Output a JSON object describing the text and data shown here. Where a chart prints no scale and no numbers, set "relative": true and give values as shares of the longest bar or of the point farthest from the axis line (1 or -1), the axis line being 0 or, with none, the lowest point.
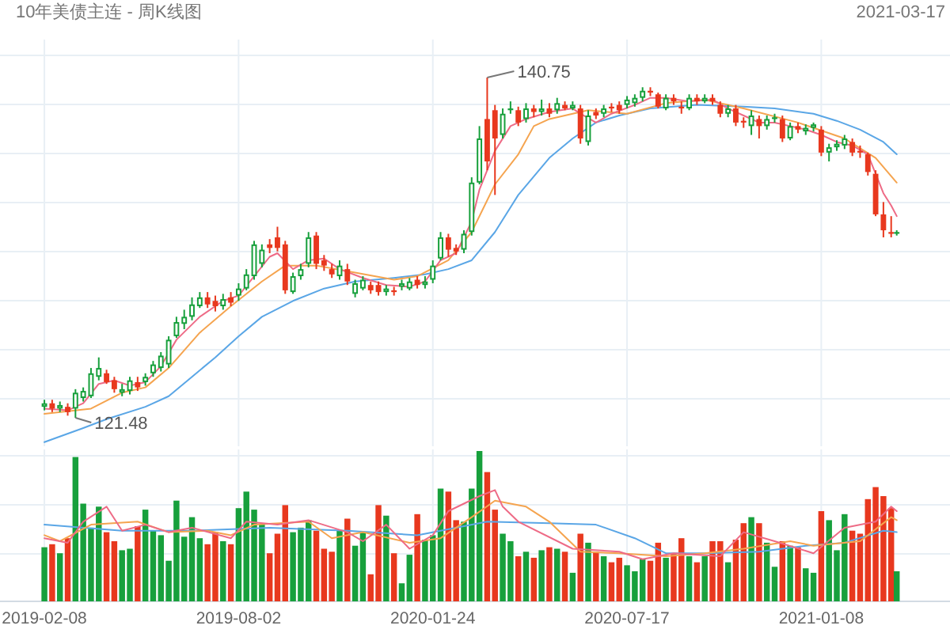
{
  "chart_data": [
    {
      "type": "candlestick",
      "title": "10年美债主连 - 周K线图",
      "x": [
        "2019-02-08",
        "2019-02-15",
        "2019-02-22",
        "2019-03-01",
        "2019-03-08",
        "2019-03-15",
        "2019-03-22",
        "2019-03-29",
        "2019-04-05",
        "2019-04-12",
        "2019-04-19",
        "2019-04-26",
        "2019-05-03",
        "2019-05-10",
        "2019-05-17",
        "2019-05-24",
        "2019-05-31",
        "2019-06-07",
        "2019-06-14",
        "2019-06-21",
        "2019-06-28",
        "2019-07-05",
        "2019-07-12",
        "2019-07-19",
        "2019-07-26",
        "2019-08-02",
        "2019-08-09",
        "2019-08-16",
        "2019-08-23",
        "2019-08-30",
        "2019-09-06",
        "2019-09-13",
        "2019-09-20",
        "2019-09-27",
        "2019-10-04",
        "2019-10-11",
        "2019-10-18",
        "2019-10-25",
        "2019-11-01",
        "2019-11-08",
        "2019-11-15",
        "2019-11-22",
        "2019-11-29",
        "2019-12-06",
        "2019-12-13",
        "2019-12-20",
        "2019-12-27",
        "2020-01-03",
        "2020-01-10",
        "2020-01-17",
        "2020-01-24",
        "2020-01-31",
        "2020-02-07",
        "2020-02-14",
        "2020-02-21",
        "2020-02-28",
        "2020-03-06",
        "2020-03-13",
        "2020-03-20",
        "2020-03-27",
        "2020-04-03",
        "2020-04-10",
        "2020-04-17",
        "2020-04-24",
        "2020-05-01",
        "2020-05-08",
        "2020-05-15",
        "2020-05-22",
        "2020-05-29",
        "2020-06-05",
        "2020-06-12",
        "2020-06-19",
        "2020-06-26",
        "2020-07-03",
        "2020-07-10",
        "2020-07-17",
        "2020-07-24",
        "2020-07-31",
        "2020-08-07",
        "2020-08-14",
        "2020-08-21",
        "2020-08-28",
        "2020-09-04",
        "2020-09-11",
        "2020-09-18",
        "2020-09-25",
        "2020-10-02",
        "2020-10-09",
        "2020-10-16",
        "2020-10-23",
        "2020-10-30",
        "2020-11-06",
        "2020-11-13",
        "2020-11-20",
        "2020-11-27",
        "2020-12-04",
        "2020-12-11",
        "2020-12-18",
        "2020-12-25",
        "2021-01-01",
        "2021-01-08",
        "2021-01-15",
        "2021-01-22",
        "2021-01-29",
        "2021-02-05",
        "2021-02-12",
        "2021-02-19",
        "2021-02-26",
        "2021-03-05",
        "2021-03-12",
        "2021-03-17"
      ],
      "ohlc": [
        [
          122.1,
          122.5,
          121.9,
          122.3
        ],
        [
          122.3,
          122.5,
          121.8,
          122.0
        ],
        [
          122.0,
          122.4,
          121.8,
          122.2
        ],
        [
          122.1,
          122.3,
          121.6,
          121.8
        ],
        [
          122.0,
          123.1,
          121.48,
          122.9
        ],
        [
          122.6,
          123.2,
          122.4,
          123.0
        ],
        [
          122.7,
          124.3,
          122.6,
          124.0
        ],
        [
          123.8,
          124.9,
          123.6,
          124.3
        ],
        [
          124.0,
          124.2,
          123.4,
          123.5
        ],
        [
          123.6,
          123.8,
          122.9,
          123.1
        ],
        [
          122.9,
          123.4,
          122.7,
          123.1
        ],
        [
          123.0,
          123.8,
          122.8,
          123.6
        ],
        [
          123.5,
          123.8,
          123.0,
          123.2
        ],
        [
          123.5,
          124.0,
          123.3,
          123.8
        ],
        [
          124.0,
          124.7,
          123.8,
          124.5
        ],
        [
          124.3,
          125.2,
          124.1,
          125.0
        ],
        [
          124.5,
          126.1,
          124.3,
          125.9
        ],
        [
          126.1,
          127.2,
          126.0,
          126.9
        ],
        [
          126.8,
          127.6,
          126.5,
          127.2
        ],
        [
          127.2,
          128.3,
          127.0,
          127.9
        ],
        [
          127.8,
          128.6,
          127.7,
          128.3
        ],
        [
          128.3,
          128.6,
          127.7,
          127.9
        ],
        [
          128.1,
          128.4,
          127.5,
          127.8
        ],
        [
          127.8,
          128.5,
          127.6,
          128.2
        ],
        [
          128.3,
          128.6,
          127.8,
          128.0
        ],
        [
          128.4,
          129.1,
          128.1,
          128.8
        ],
        [
          128.8,
          129.9,
          128.7,
          129.6
        ],
        [
          129.5,
          131.5,
          129.3,
          131.3
        ],
        [
          130.2,
          131.3,
          130.0,
          131.0
        ],
        [
          131.3,
          131.6,
          130.8,
          131.1
        ],
        [
          131.7,
          132.3,
          130.9,
          131.1
        ],
        [
          131.3,
          131.5,
          128.5,
          128.7
        ],
        [
          128.6,
          129.7,
          128.5,
          129.5
        ],
        [
          129.5,
          130.2,
          129.3,
          129.9
        ],
        [
          130.2,
          132.0,
          130.0,
          131.7
        ],
        [
          131.8,
          132.0,
          129.9,
          130.2
        ],
        [
          130.4,
          130.7,
          129.8,
          130.1
        ],
        [
          129.9,
          130.2,
          129.4,
          129.6
        ],
        [
          129.5,
          130.4,
          129.3,
          130.1
        ],
        [
          129.9,
          130.2,
          129.0,
          129.2
        ],
        [
          128.5,
          129.3,
          128.3,
          129.1
        ],
        [
          128.8,
          129.5,
          128.7,
          129.3
        ],
        [
          129.0,
          129.2,
          128.5,
          128.7
        ],
        [
          129.0,
          129.2,
          128.4,
          128.6
        ],
        [
          128.6,
          129.0,
          128.4,
          128.8
        ],
        [
          128.7,
          128.9,
          128.4,
          128.6
        ],
        [
          128.9,
          129.3,
          128.7,
          129.1
        ],
        [
          128.8,
          129.4,
          128.7,
          129.2
        ],
        [
          129.3,
          129.5,
          128.8,
          129.0
        ],
        [
          129.0,
          129.5,
          128.8,
          129.2
        ],
        [
          129.3,
          130.4,
          129.1,
          130.1
        ],
        [
          130.5,
          132.0,
          130.4,
          131.7
        ],
        [
          131.7,
          131.9,
          130.6,
          131.0
        ],
        [
          131.1,
          131.3,
          130.7,
          130.9
        ],
        [
          131.0,
          132.1,
          130.8,
          131.9
        ],
        [
          132.0,
          135.1,
          131.8,
          134.8
        ],
        [
          134.8,
          138.0,
          134.7,
          137.3
        ],
        [
          138.4,
          140.75,
          135.5,
          136.0
        ],
        [
          138.9,
          139.2,
          134.1,
          137.3
        ],
        [
          137.5,
          139.0,
          137.3,
          138.7
        ],
        [
          138.9,
          139.4,
          138.7,
          139.0
        ],
        [
          138.9,
          139.1,
          138.0,
          138.2
        ],
        [
          138.4,
          139.3,
          138.2,
          139.0
        ],
        [
          139.0,
          139.2,
          138.5,
          138.8
        ],
        [
          138.8,
          139.5,
          138.6,
          139.0
        ],
        [
          139.0,
          139.3,
          138.5,
          138.7
        ],
        [
          138.9,
          139.6,
          138.7,
          139.3
        ],
        [
          139.2,
          139.4,
          138.9,
          139.0
        ],
        [
          139.0,
          139.4,
          138.9,
          139.2
        ],
        [
          139.0,
          139.2,
          137.0,
          137.3
        ],
        [
          137.1,
          138.9,
          136.9,
          138.6
        ],
        [
          138.8,
          139.0,
          138.4,
          138.6
        ],
        [
          138.7,
          139.2,
          138.5,
          139.0
        ],
        [
          139.1,
          139.3,
          138.8,
          139.0
        ],
        [
          139.2,
          139.4,
          138.7,
          138.9
        ],
        [
          139.2,
          139.7,
          139.0,
          139.5
        ],
        [
          139.3,
          139.8,
          139.1,
          139.6
        ],
        [
          139.6,
          140.2,
          139.4,
          140.0
        ],
        [
          140.0,
          140.2,
          139.7,
          139.9
        ],
        [
          139.8,
          139.9,
          139.0,
          139.1
        ],
        [
          139.0,
          139.8,
          138.9,
          139.6
        ],
        [
          139.6,
          139.8,
          139.2,
          139.4
        ],
        [
          139.1,
          139.4,
          138.7,
          139.0
        ],
        [
          139.0,
          139.8,
          138.9,
          139.6
        ],
        [
          139.6,
          139.8,
          139.2,
          139.4
        ],
        [
          139.4,
          139.8,
          139.3,
          139.6
        ],
        [
          139.6,
          139.8,
          139.2,
          139.4
        ],
        [
          139.2,
          139.4,
          138.5,
          138.7
        ],
        [
          138.7,
          139.2,
          138.5,
          139.0
        ],
        [
          139.0,
          139.2,
          138.0,
          138.2
        ],
        [
          138.3,
          138.5,
          137.9,
          138.2
        ],
        [
          138.0,
          138.9,
          137.5,
          138.6
        ],
        [
          138.4,
          138.6,
          137.3,
          138.0
        ],
        [
          138.0,
          138.6,
          137.8,
          138.4
        ],
        [
          138.4,
          138.7,
          138.2,
          138.5
        ],
        [
          138.4,
          138.6,
          137.1,
          137.3
        ],
        [
          137.3,
          138.2,
          137.2,
          138.0
        ],
        [
          138.0,
          138.2,
          137.6,
          137.8
        ],
        [
          137.7,
          138.1,
          137.5,
          137.9
        ],
        [
          137.9,
          138.2,
          137.7,
          138.1
        ],
        [
          137.8,
          138.0,
          136.3,
          136.5
        ],
        [
          136.5,
          137.0,
          136.0,
          136.8
        ],
        [
          136.8,
          137.2,
          136.6,
          137.0
        ],
        [
          136.9,
          137.5,
          136.7,
          137.3
        ],
        [
          137.1,
          137.3,
          136.3,
          136.5
        ],
        [
          136.6,
          136.9,
          136.2,
          136.5
        ],
        [
          136.4,
          136.5,
          135.2,
          135.4
        ],
        [
          135.3,
          135.5,
          132.9,
          133.0
        ],
        [
          133.0,
          133.7,
          131.7,
          132.1
        ],
        [
          132.0,
          132.9,
          131.7,
          131.9
        ],
        [
          131.9,
          132.1,
          131.8,
          132.0
        ]
      ],
      "colors": [
        "#17a03c",
        "#e8381e",
        "#17a03c",
        "#e8381e",
        "#17a03c",
        "#17a03c",
        "#17a03c",
        "#17a03c",
        "#e8381e",
        "#e8381e",
        "#17a03c",
        "#17a03c",
        "#e8381e",
        "#17a03c",
        "#17a03c",
        "#17a03c",
        "#17a03c",
        "#17a03c",
        "#17a03c",
        "#17a03c",
        "#17a03c",
        "#e8381e",
        "#e8381e",
        "#17a03c",
        "#e8381e",
        "#17a03c",
        "#17a03c",
        "#17a03c",
        "#17a03c",
        "#e8381e",
        "#e8381e",
        "#e8381e",
        "#17a03c",
        "#17a03c",
        "#17a03c",
        "#e8381e",
        "#e8381e",
        "#e8381e",
        "#17a03c",
        "#e8381e",
        "#17a03c",
        "#17a03c",
        "#e8381e",
        "#e8381e",
        "#17a03c",
        "#e8381e",
        "#17a03c",
        "#17a03c",
        "#e8381e",
        "#17a03c",
        "#17a03c",
        "#17a03c",
        "#e8381e",
        "#e8381e",
        "#17a03c",
        "#17a03c",
        "#17a03c",
        "#e8381e",
        "#e8381e",
        "#17a03c",
        "#17a03c",
        "#e8381e",
        "#17a03c",
        "#e8381e",
        "#17a03c",
        "#e8381e",
        "#17a03c",
        "#e8381e",
        "#17a03c",
        "#e8381e",
        "#17a03c",
        "#e8381e",
        "#17a03c",
        "#e8381e",
        "#e8381e",
        "#17a03c",
        "#17a03c",
        "#17a03c",
        "#e8381e",
        "#e8381e",
        "#17a03c",
        "#e8381e",
        "#e8381e",
        "#17a03c",
        "#e8381e",
        "#17a03c",
        "#e8381e",
        "#e8381e",
        "#17a03c",
        "#e8381e",
        "#e8381e",
        "#17a03c",
        "#e8381e",
        "#17a03c",
        "#17a03c",
        "#e8381e",
        "#17a03c",
        "#e8381e",
        "#17a03c",
        "#17a03c",
        "#e8381e",
        "#17a03c",
        "#17a03c",
        "#17a03c",
        "#e8381e",
        "#e8381e",
        "#e8381e",
        "#e8381e",
        "#e8381e",
        "#e8381e",
        "#17a03c"
      ],
      "series": [
        {
          "type": "line",
          "color": "#5aa6e6",
          "x": [
            "2019-02-08",
            "2019-03-15",
            "2019-04-05",
            "2019-05-10",
            "2019-05-31",
            "2019-06-21",
            "2019-07-12",
            "2019-08-02",
            "2019-08-23",
            "2019-09-20",
            "2019-10-18",
            "2019-11-15",
            "2019-12-20",
            "2020-01-17",
            "2020-02-07",
            "2020-02-28",
            "2020-03-20",
            "2020-04-10",
            "2020-05-08",
            "2020-05-29",
            "2020-06-19",
            "2020-07-10",
            "2020-08-07",
            "2020-09-18",
            "2020-10-30",
            "2020-11-27",
            "2021-01-01",
            "2021-01-22",
            "2021-02-12",
            "2021-03-05",
            "2021-03-17"
          ],
          "values": [
            120.1,
            120.9,
            121.4,
            122.1,
            122.7,
            123.8,
            124.9,
            126.1,
            127.2,
            128.1,
            128.8,
            129.2,
            129.4,
            129.6,
            129.9,
            130.4,
            132.0,
            134.1,
            136.2,
            137.3,
            138.2,
            138.6,
            139.0,
            139.2,
            139.1,
            139.0,
            138.7,
            138.3,
            137.8,
            137.1,
            136.4
          ]
        },
        {
          "type": "line",
          "color": "#f5a44f",
          "x": [
            "2019-02-08",
            "2019-03-22",
            "2019-04-19",
            "2019-05-10",
            "2019-05-31",
            "2019-06-28",
            "2019-07-26",
            "2019-08-23",
            "2019-09-13",
            "2019-10-11",
            "2019-11-15",
            "2019-12-20",
            "2020-01-10",
            "2020-02-07",
            "2020-02-28",
            "2020-03-20",
            "2020-04-10",
            "2020-04-24",
            "2020-05-08",
            "2020-06-12",
            "2020-07-17",
            "2020-08-21",
            "2020-09-25",
            "2020-10-30",
            "2020-12-18",
            "2021-01-29",
            "2021-02-26",
            "2021-03-17"
          ],
          "values": [
            121.7,
            122.0,
            122.9,
            123.2,
            124.3,
            126.3,
            127.8,
            129.2,
            130.1,
            130.1,
            129.7,
            129.3,
            129.5,
            130.4,
            132.0,
            134.7,
            136.4,
            138.0,
            138.4,
            138.9,
            138.7,
            139.3,
            139.5,
            139.0,
            138.2,
            137.3,
            136.2,
            134.8
          ]
        },
        {
          "type": "line",
          "color": "#ee6b86",
          "x": [
            "2019-02-08",
            "2019-03-01",
            "2019-03-15",
            "2019-03-29",
            "2019-04-12",
            "2019-04-26",
            "2019-05-10",
            "2019-05-24",
            "2019-06-07",
            "2019-06-28",
            "2019-07-19",
            "2019-08-02",
            "2019-08-16",
            "2019-08-30",
            "2019-09-06",
            "2019-09-20",
            "2019-10-04",
            "2019-10-18",
            "2019-11-01",
            "2019-11-22",
            "2019-12-13",
            "2020-01-03",
            "2020-01-17",
            "2020-01-31",
            "2020-02-14",
            "2020-02-28",
            "2020-03-06",
            "2020-03-20",
            "2020-04-03",
            "2020-04-17",
            "2020-05-08",
            "2020-05-29",
            "2020-06-05",
            "2020-06-19",
            "2020-07-03",
            "2020-07-24",
            "2020-08-07",
            "2020-08-21",
            "2020-09-11",
            "2020-10-02",
            "2020-10-16",
            "2020-10-30",
            "2020-11-13",
            "2020-11-27",
            "2020-12-11",
            "2020-12-25",
            "2021-01-08",
            "2021-01-22",
            "2021-02-05",
            "2021-02-19",
            "2021-02-26",
            "2021-03-05",
            "2021-03-12",
            "2021-03-17"
          ],
          "values": [
            122.0,
            121.9,
            122.3,
            123.4,
            123.6,
            123.3,
            123.5,
            124.4,
            125.9,
            127.2,
            128.1,
            128.4,
            129.5,
            130.6,
            130.8,
            129.9,
            130.4,
            130.5,
            129.9,
            129.4,
            129.0,
            128.9,
            129.2,
            130.4,
            130.8,
            132.6,
            134.4,
            136.6,
            138.0,
            138.4,
            138.8,
            139.0,
            138.7,
            138.2,
            138.7,
            139.2,
            139.6,
            139.6,
            139.4,
            139.5,
            139.0,
            138.6,
            138.2,
            138.2,
            138.0,
            137.8,
            137.5,
            137.1,
            136.9,
            136.4,
            135.3,
            134.2,
            133.5,
            132.9
          ]
        }
      ],
      "xlim": [
        "2018-12-30",
        "2021-05-04"
      ],
      "xticks": [
        "2019-02-08",
        "2019-08-02",
        "2020-01-24",
        "2020-07-17",
        "2021-01-08"
      ],
      "grid": true,
      "tick_labels": false,
      "annotations": [
        {
          "text": "140.75",
          "x": "2020-03-13",
          "y": 140.75
        },
        {
          "text": "121.48",
          "x": "2019-03-08",
          "y": 121.48
        },
        "2021-03-17"
      ]
    },
    {
      "type": "bar",
      "relative": true,
      "x": [
        "2019-02-08",
        "2019-02-15",
        "2019-02-22",
        "2019-03-01",
        "2019-03-08",
        "2019-03-15",
        "2019-03-22",
        "2019-03-29",
        "2019-04-05",
        "2019-04-12",
        "2019-04-19",
        "2019-04-26",
        "2019-05-03",
        "2019-05-10",
        "2019-05-17",
        "2019-05-24",
        "2019-05-31",
        "2019-06-07",
        "2019-06-14",
        "2019-06-21",
        "2019-06-28",
        "2019-07-05",
        "2019-07-12",
        "2019-07-19",
        "2019-07-26",
        "2019-08-02",
        "2019-08-09",
        "2019-08-16",
        "2019-08-23",
        "2019-08-30",
        "2019-09-06",
        "2019-09-13",
        "2019-09-20",
        "2019-09-27",
        "2019-10-04",
        "2019-10-11",
        "2019-10-18",
        "2019-10-25",
        "2019-11-01",
        "2019-11-08",
        "2019-11-15",
        "2019-11-22",
        "2019-11-29",
        "2019-12-06",
        "2019-12-13",
        "2019-12-20",
        "2019-12-27",
        "2020-01-03",
        "2020-01-10",
        "2020-01-17",
        "2020-01-24",
        "2020-01-31",
        "2020-02-07",
        "2020-02-14",
        "2020-02-21",
        "2020-02-28",
        "2020-03-06",
        "2020-03-13",
        "2020-03-20",
        "2020-03-27",
        "2020-04-03",
        "2020-04-10",
        "2020-04-17",
        "2020-04-24",
        "2020-05-01",
        "2020-05-08",
        "2020-05-15",
        "2020-05-22",
        "2020-05-29",
        "2020-06-05",
        "2020-06-12",
        "2020-06-19",
        "2020-06-26",
        "2020-07-03",
        "2020-07-10",
        "2020-07-17",
        "2020-07-24",
        "2020-07-31",
        "2020-08-07",
        "2020-08-14",
        "2020-08-21",
        "2020-08-28",
        "2020-09-04",
        "2020-09-11",
        "2020-09-18",
        "2020-09-25",
        "2020-10-02",
        "2020-10-09",
        "2020-10-16",
        "2020-10-23",
        "2020-10-30",
        "2020-11-06",
        "2020-11-13",
        "2020-11-20",
        "2020-11-27",
        "2020-12-04",
        "2020-12-11",
        "2020-12-18",
        "2020-12-25",
        "2021-01-01",
        "2021-01-08",
        "2021-01-15",
        "2021-01-22",
        "2021-01-29",
        "2021-02-05",
        "2021-02-12",
        "2021-02-19",
        "2021-02-26",
        "2021-03-05",
        "2021-03-12",
        "2021-03-17"
      ],
      "values": [
        0.36,
        0.38,
        0.32,
        0.42,
        0.96,
        0.65,
        0.49,
        0.63,
        0.46,
        0.4,
        0.34,
        0.35,
        0.5,
        0.61,
        0.47,
        0.44,
        0.27,
        0.67,
        0.43,
        0.56,
        0.42,
        0.38,
        0.46,
        0.4,
        0.38,
        0.62,
        0.73,
        0.61,
        0.51,
        0.32,
        0.45,
        0.64,
        0.46,
        0.49,
        0.54,
        0.47,
        0.35,
        0.33,
        0.47,
        0.55,
        0.37,
        0.46,
        0.18,
        0.64,
        0.57,
        0.32,
        0.12,
        0.31,
        0.58,
        0.41,
        0.44,
        0.75,
        0.73,
        0.54,
        0.53,
        0.75,
        1.0,
        0.86,
        0.61,
        0.45,
        0.4,
        0.3,
        0.33,
        0.29,
        0.34,
        0.36,
        0.35,
        0.33,
        0.19,
        0.45,
        0.39,
        0.33,
        0.3,
        0.26,
        0.29,
        0.24,
        0.2,
        0.28,
        0.27,
        0.39,
        0.29,
        0.32,
        0.42,
        0.3,
        0.26,
        0.3,
        0.4,
        0.4,
        0.26,
        0.41,
        0.52,
        0.56,
        0.52,
        0.39,
        0.23,
        0.4,
        0.37,
        0.36,
        0.22,
        0.19,
        0.6,
        0.54,
        0.34,
        0.58,
        0.47,
        0.45,
        0.68,
        0.76,
        0.7,
        0.62,
        0.2
      ],
      "colors": [
        "#17a03c",
        "#e8381e",
        "#17a03c",
        "#e8381e",
        "#17a03c",
        "#17a03c",
        "#17a03c",
        "#17a03c",
        "#e8381e",
        "#e8381e",
        "#17a03c",
        "#17a03c",
        "#e8381e",
        "#17a03c",
        "#17a03c",
        "#17a03c",
        "#17a03c",
        "#17a03c",
        "#17a03c",
        "#17a03c",
        "#17a03c",
        "#e8381e",
        "#e8381e",
        "#17a03c",
        "#e8381e",
        "#17a03c",
        "#17a03c",
        "#17a03c",
        "#17a03c",
        "#e8381e",
        "#e8381e",
        "#e8381e",
        "#17a03c",
        "#17a03c",
        "#17a03c",
        "#e8381e",
        "#e8381e",
        "#e8381e",
        "#17a03c",
        "#e8381e",
        "#17a03c",
        "#17a03c",
        "#e8381e",
        "#e8381e",
        "#17a03c",
        "#e8381e",
        "#17a03c",
        "#17a03c",
        "#e8381e",
        "#17a03c",
        "#17a03c",
        "#17a03c",
        "#e8381e",
        "#e8381e",
        "#17a03c",
        "#17a03c",
        "#17a03c",
        "#e8381e",
        "#e8381e",
        "#17a03c",
        "#17a03c",
        "#e8381e",
        "#17a03c",
        "#e8381e",
        "#17a03c",
        "#e8381e",
        "#17a03c",
        "#e8381e",
        "#17a03c",
        "#e8381e",
        "#17a03c",
        "#e8381e",
        "#17a03c",
        "#e8381e",
        "#e8381e",
        "#17a03c",
        "#17a03c",
        "#17a03c",
        "#e8381e",
        "#e8381e",
        "#17a03c",
        "#e8381e",
        "#e8381e",
        "#17a03c",
        "#e8381e",
        "#17a03c",
        "#e8381e",
        "#e8381e",
        "#17a03c",
        "#e8381e",
        "#e8381e",
        "#17a03c",
        "#e8381e",
        "#17a03c",
        "#17a03c",
        "#e8381e",
        "#17a03c",
        "#e8381e",
        "#17a03c",
        "#17a03c",
        "#e8381e",
        "#17a03c",
        "#17a03c",
        "#17a03c",
        "#e8381e",
        "#e8381e",
        "#e8381e",
        "#e8381e",
        "#e8381e",
        "#e8381e",
        "#17a03c"
      ],
      "series": [
        {
          "type": "line",
          "color": "#5aa6e6",
          "x": [
            "2019-02-08",
            "2019-04-19",
            "2019-06-21",
            "2019-08-30",
            "2019-11-08",
            "2020-01-10",
            "2020-03-13",
            "2020-05-08",
            "2020-06-19",
            "2020-07-24",
            "2020-08-21",
            "2020-09-25",
            "2020-11-13",
            "2020-12-25",
            "2021-01-29",
            "2021-03-05",
            "2021-03-17"
          ],
          "values": [
            0.51,
            0.47,
            0.47,
            0.49,
            0.47,
            0.44,
            0.53,
            0.52,
            0.51,
            0.42,
            0.32,
            0.32,
            0.33,
            0.37,
            0.39,
            0.47,
            0.46
          ]
        },
        {
          "type": "line",
          "color": "#f5a44f",
          "x": [
            "2019-02-08",
            "2019-02-22",
            "2019-03-22",
            "2019-05-03",
            "2019-05-31",
            "2019-07-05",
            "2019-07-26",
            "2019-08-16",
            "2019-10-04",
            "2019-10-25",
            "2019-11-22",
            "2020-01-03",
            "2020-01-31",
            "2020-02-28",
            "2020-03-20",
            "2020-04-17",
            "2020-05-08",
            "2020-06-05",
            "2020-07-10",
            "2020-08-21",
            "2020-09-25",
            "2020-10-30",
            "2020-12-11",
            "2021-01-01",
            "2021-02-12",
            "2021-03-12",
            "2021-03-17"
          ],
          "values": [
            0.44,
            0.4,
            0.51,
            0.53,
            0.46,
            0.47,
            0.44,
            0.51,
            0.53,
            0.42,
            0.46,
            0.39,
            0.42,
            0.56,
            0.67,
            0.63,
            0.53,
            0.33,
            0.32,
            0.3,
            0.32,
            0.35,
            0.4,
            0.37,
            0.4,
            0.56,
            0.54
          ]
        },
        {
          "type": "line",
          "color": "#ee6b86",
          "x": [
            "2019-02-08",
            "2019-03-01",
            "2019-03-15",
            "2019-04-05",
            "2019-04-19",
            "2019-05-10",
            "2019-05-31",
            "2019-06-21",
            "2019-07-26",
            "2019-08-09",
            "2019-09-06",
            "2019-10-04",
            "2019-11-08",
            "2019-11-22",
            "2019-12-13",
            "2020-01-03",
            "2020-01-24",
            "2020-02-07",
            "2020-03-06",
            "2020-03-20",
            "2020-03-27",
            "2020-04-10",
            "2020-05-29",
            "2020-07-10",
            "2020-07-31",
            "2020-08-28",
            "2020-10-09",
            "2020-10-30",
            "2020-11-27",
            "2021-01-01",
            "2021-01-29",
            "2021-02-26",
            "2021-03-12",
            "2021-03-17"
          ],
          "values": [
            0.42,
            0.39,
            0.53,
            0.63,
            0.47,
            0.51,
            0.46,
            0.49,
            0.42,
            0.53,
            0.51,
            0.54,
            0.46,
            0.4,
            0.51,
            0.35,
            0.44,
            0.6,
            0.7,
            0.74,
            0.63,
            0.53,
            0.35,
            0.33,
            0.28,
            0.32,
            0.3,
            0.46,
            0.4,
            0.32,
            0.49,
            0.53,
            0.63,
            0.6
          ]
        }
      ],
      "xlim": [
        "2018-12-30",
        "2021-05-04"
      ],
      "xticks": [
        "2019-02-08",
        "2019-08-02",
        "2020-01-24",
        "2020-07-17",
        "2021-01-08"
      ],
      "grid": true,
      "tick_labels": "x"
    }
  ]
}
